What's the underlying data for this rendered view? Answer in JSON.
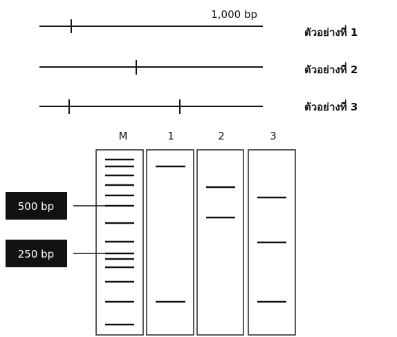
{
  "restriction_map": {
    "scale_label": "1,000 bp",
    "samples": [
      "ตัวอย่างที่ 1",
      "ตัวอย่างที่  2",
      "ตัวอย่างที่ 3"
    ]
  },
  "gel": {
    "lanes": [
      "M",
      "1",
      "2",
      "3"
    ],
    "markers": [
      "500 bp",
      "250 bp"
    ]
  }
}
